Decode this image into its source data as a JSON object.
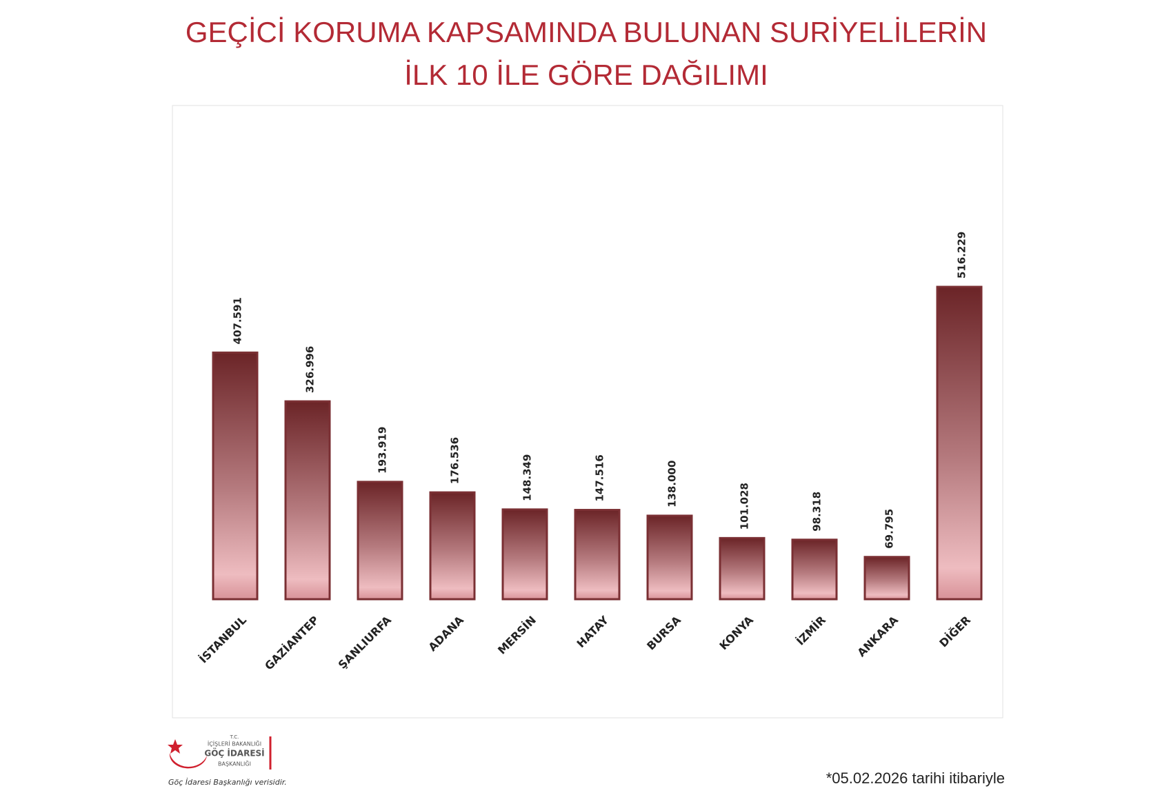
{
  "chart_data": {
    "type": "bar",
    "title": "GEÇİCİ KORUMA KAPSAMINDA BULUNAN SURİYELİLERİN",
    "subtitle": "İLK 10 İLE GÖRE DAĞILIMI",
    "categories": [
      "İSTANBUL",
      "GAZİANTEP",
      "ŞANLIURFA",
      "ADANA",
      "MERSİN",
      "HATAY",
      "BURSA",
      "KONYA",
      "İZMİR",
      "ANKARA",
      "DİĞER"
    ],
    "values": [
      407591,
      326996,
      193919,
      176536,
      148349,
      147516,
      138000,
      101028,
      98318,
      69795,
      516229
    ],
    "value_labels": [
      "407.591",
      "326.996",
      "193.919",
      "176.536",
      "148.349",
      "147.516",
      "138.000",
      "101.028",
      "98.318",
      "69.795",
      "516.229"
    ],
    "color": "#7a2f33"
  },
  "footer": {
    "note": "*05.02.2026 tarihi itibariyle",
    "logo": {
      "line1": "T.C.",
      "line2": "İÇİŞLERİ BAKANLIĞI",
      "line3": "GÖÇ İDARESİ",
      "line4": "BAŞKANLIĞI",
      "source": "Göç İdaresi Başkanlığı verisidir."
    }
  }
}
